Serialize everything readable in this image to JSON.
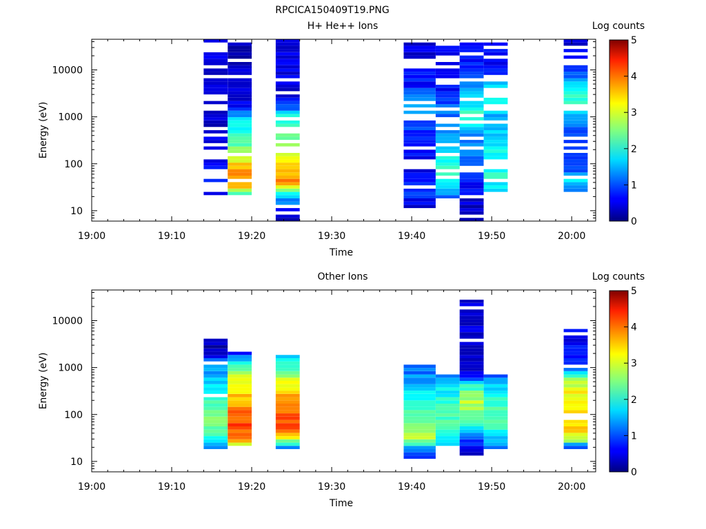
{
  "filename": "RPCICA150409T19.PNG",
  "colorbar": {
    "label": "Log counts",
    "ticks": [
      "0",
      "1",
      "2",
      "3",
      "4",
      "5"
    ]
  },
  "chart_data": [
    {
      "type": "heatmap",
      "title": "H+ He++ Ions",
      "xlabel": "Time",
      "ylabel": "Energy (eV)",
      "x_ticks": [
        "19:00",
        "19:10",
        "19:20",
        "19:30",
        "19:40",
        "19:50",
        "20:00"
      ],
      "xlim": [
        "19:00",
        "20:03"
      ],
      "y_ticks": [
        "10",
        "100",
        "1000",
        "10000"
      ],
      "ylim": [
        6,
        45000
      ],
      "y_scale": "log",
      "color_scale": "Log counts 0-5",
      "columns": [
        {
          "time_start": "19:14",
          "time_end": "19:17",
          "emin": 17,
          "emax": 45000,
          "profile": [
            [
              17,
              0.4
            ],
            [
              30,
              0.5
            ],
            [
              50,
              0.7
            ],
            [
              100,
              0.6
            ],
            [
              300,
              0.5
            ],
            [
              1000,
              0.3
            ],
            [
              3000,
              0.4
            ],
            [
              10000,
              0.5
            ],
            [
              45000,
              0.5
            ]
          ],
          "density": 0.6
        },
        {
          "time_start": "19:17",
          "time_end": "19:20",
          "emin": 22,
          "emax": 40000,
          "profile": [
            [
              22,
              2.0
            ],
            [
              30,
              3.2
            ],
            [
              50,
              3.8
            ],
            [
              80,
              3.5
            ],
            [
              150,
              2.7
            ],
            [
              300,
              2.2
            ],
            [
              700,
              1.8
            ],
            [
              1200,
              1.4
            ],
            [
              1600,
              0.5
            ],
            [
              40000,
              0.3
            ]
          ],
          "density": 0.85
        },
        {
          "time_start": "19:23",
          "time_end": "19:26",
          "emin": 6,
          "emax": 45000,
          "profile": [
            [
              6,
              0.2
            ],
            [
              22,
              1.6
            ],
            [
              40,
              3.8
            ],
            [
              60,
              3.6
            ],
            [
              100,
              3.3
            ],
            [
              200,
              2.8
            ],
            [
              500,
              2.4
            ],
            [
              1000,
              2.0
            ],
            [
              1500,
              1.0
            ],
            [
              3000,
              0.5
            ],
            [
              45000,
              0.5
            ]
          ],
          "density": 0.85
        },
        {
          "time_start": "19:39",
          "time_end": "19:43",
          "emin": 11,
          "emax": 40000,
          "profile": [
            [
              11,
              0.3
            ],
            [
              25,
              1.0
            ],
            [
              60,
              0.6
            ],
            [
              200,
              0.6
            ],
            [
              500,
              0.9
            ],
            [
              2000,
              1.4
            ],
            [
              5000,
              0.7
            ],
            [
              40000,
              0.4
            ]
          ],
          "density": 0.75
        },
        {
          "time_start": "19:43",
          "time_end": "19:46",
          "emin": 17,
          "emax": 45000,
          "profile": [
            [
              17,
              1.0
            ],
            [
              30,
              1.8
            ],
            [
              60,
              2.2
            ],
            [
              120,
              2.0
            ],
            [
              300,
              1.6
            ],
            [
              800,
              1.3
            ],
            [
              2000,
              1.0
            ],
            [
              5000,
              0.6
            ],
            [
              45000,
              0.5
            ]
          ],
          "density": 0.75
        },
        {
          "time_start": "19:46",
          "time_end": "19:49",
          "emin": 6,
          "emax": 40000,
          "profile": [
            [
              6,
              0.2
            ],
            [
              30,
              0.6
            ],
            [
              100,
              1.0
            ],
            [
              500,
              1.5
            ],
            [
              1000,
              2.4
            ],
            [
              1500,
              2.0
            ],
            [
              3000,
              1.5
            ],
            [
              10000,
              0.8
            ],
            [
              40000,
              0.5
            ]
          ],
          "density": 0.7
        },
        {
          "time_start": "19:49",
          "time_end": "19:52",
          "emin": 22,
          "emax": 40000,
          "profile": [
            [
              22,
              1.5
            ],
            [
              50,
              2.0
            ],
            [
              100,
              2.1
            ],
            [
              300,
              1.7
            ],
            [
              1000,
              1.4
            ],
            [
              2500,
              2.0
            ],
            [
              5000,
              1.5
            ],
            [
              10000,
              0.6
            ],
            [
              40000,
              0.6
            ]
          ],
          "density": 0.75
        },
        {
          "time_start": "19:59",
          "time_end": "20:02",
          "emin": 27,
          "emax": 45000,
          "profile": [
            [
              27,
              1.0
            ],
            [
              40,
              1.8
            ],
            [
              80,
              1.0
            ],
            [
              300,
              0.8
            ],
            [
              1000,
              1.3
            ],
            [
              1800,
              2.4
            ],
            [
              3000,
              2.0
            ],
            [
              6000,
              1.4
            ],
            [
              10000,
              0.7
            ],
            [
              45000,
              0.5
            ]
          ],
          "density": 0.8
        }
      ]
    },
    {
      "type": "heatmap",
      "title": "Other Ions",
      "xlabel": "Time",
      "ylabel": "Energy (eV)",
      "x_ticks": [
        "19:00",
        "19:10",
        "19:20",
        "19:30",
        "19:40",
        "19:50",
        "20:00"
      ],
      "xlim": [
        "19:00",
        "20:03"
      ],
      "y_ticks": [
        "10",
        "100",
        "1000",
        "10000"
      ],
      "ylim": [
        6,
        45000
      ],
      "y_scale": "log",
      "color_scale": "Log counts 0-5",
      "columns": [
        {
          "time_start": "19:14",
          "time_end": "19:17",
          "emin": 17,
          "emax": 4000,
          "profile": [
            [
              17,
              0.8
            ],
            [
              22,
              1.6
            ],
            [
              40,
              2.4
            ],
            [
              80,
              2.6
            ],
            [
              150,
              2.3
            ],
            [
              300,
              1.8
            ],
            [
              700,
              1.5
            ],
            [
              1400,
              1.3
            ],
            [
              2000,
              0.3
            ],
            [
              4000,
              0.3
            ]
          ],
          "density": 0.85
        },
        {
          "time_start": "19:17",
          "time_end": "19:20",
          "emin": 22,
          "emax": 2200,
          "profile": [
            [
              22,
              2.6
            ],
            [
              30,
              3.8
            ],
            [
              60,
              4.1
            ],
            [
              100,
              3.9
            ],
            [
              200,
              3.5
            ],
            [
              500,
              3.0
            ],
            [
              1000,
              2.4
            ],
            [
              1500,
              1.5
            ],
            [
              2200,
              0.5
            ]
          ],
          "density": 1.0
        },
        {
          "time_start": "19:23",
          "time_end": "19:26",
          "emin": 17,
          "emax": 1800,
          "profile": [
            [
              17,
              0.5
            ],
            [
              22,
              2.0
            ],
            [
              30,
              2.8
            ],
            [
              40,
              3.8
            ],
            [
              80,
              4.0
            ],
            [
              150,
              3.7
            ],
            [
              300,
              3.4
            ],
            [
              600,
              2.9
            ],
            [
              1000,
              2.2
            ],
            [
              1800,
              1.7
            ]
          ],
          "density": 1.0
        },
        {
          "time_start": "19:39",
          "time_end": "19:43",
          "emin": 11,
          "emax": 1200,
          "profile": [
            [
              11,
              0.8
            ],
            [
              20,
              1.6
            ],
            [
              30,
              2.7
            ],
            [
              60,
              2.4
            ],
            [
              100,
              2.2
            ],
            [
              200,
              1.9
            ],
            [
              400,
              1.6
            ],
            [
              800,
              1.2
            ],
            [
              1200,
              1.0
            ]
          ],
          "density": 1.0
        },
        {
          "time_start": "19:43",
          "time_end": "19:46",
          "emin": 22,
          "emax": 700,
          "profile": [
            [
              22,
              1.6
            ],
            [
              40,
              2.2
            ],
            [
              80,
              2.3
            ],
            [
              150,
              2.2
            ],
            [
              300,
              1.9
            ],
            [
              500,
              1.6
            ],
            [
              700,
              1.1
            ]
          ],
          "density": 1.0
        },
        {
          "time_start": "19:46",
          "time_end": "19:49",
          "emin": 14,
          "emax": 30000,
          "profile": [
            [
              14,
              0.2
            ],
            [
              30,
              1.0
            ],
            [
              50,
              1.8
            ],
            [
              100,
              2.5
            ],
            [
              200,
              2.8
            ],
            [
              400,
              2.1
            ],
            [
              700,
              0.5
            ],
            [
              30000,
              0.4
            ]
          ],
          "density": 0.95
        },
        {
          "time_start": "19:49",
          "time_end": "19:52",
          "emin": 17,
          "emax": 700,
          "profile": [
            [
              17,
              1.0
            ],
            [
              30,
              1.6
            ],
            [
              60,
              2.2
            ],
            [
              120,
              2.2
            ],
            [
              300,
              1.9
            ],
            [
              600,
              1.2
            ],
            [
              700,
              0.5
            ]
          ],
          "density": 0.95
        },
        {
          "time_start": "19:59",
          "time_end": "20:02",
          "emin": 17,
          "emax": 7500,
          "profile": [
            [
              17,
              0.4
            ],
            [
              22,
              1.3
            ],
            [
              30,
              3.0
            ],
            [
              60,
              3.4
            ],
            [
              150,
              3.3
            ],
            [
              300,
              3.1
            ],
            [
              600,
              2.5
            ],
            [
              1000,
              1.0
            ],
            [
              3000,
              0.6
            ],
            [
              7500,
              0.7
            ]
          ],
          "density": 0.85
        }
      ]
    }
  ]
}
